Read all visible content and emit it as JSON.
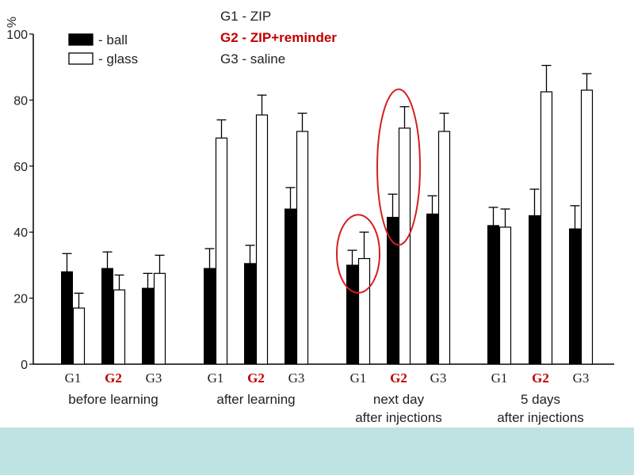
{
  "chart_data": {
    "type": "bar",
    "ylabel": "%",
    "ylim": [
      0,
      100
    ],
    "yticks": [
      "0",
      "20",
      "40",
      "60",
      "80",
      "100"
    ],
    "legend": {
      "placement": "top-left",
      "entries": [
        {
          "label": "- ball",
          "fill": "black"
        },
        {
          "label": "- glass",
          "fill": "white"
        }
      ]
    },
    "group_key": [
      {
        "text": "G1 - ZIP",
        "color": "#222222",
        "bold": false
      },
      {
        "text": "G2 - ZIP+reminder",
        "color": "#c00000",
        "bold": true
      },
      {
        "text": "G3 - saline",
        "color": "#222222",
        "bold": false
      }
    ],
    "series": [
      {
        "name": "ball",
        "fill": "#000000"
      },
      {
        "name": "glass",
        "fill": "#ffffff"
      }
    ],
    "sessions": [
      {
        "label": [
          "before learning"
        ],
        "groups": [
          {
            "label": "G1",
            "highlight": false,
            "ball": 28,
            "ball_err": 5.5,
            "glass": 17,
            "glass_err": 4.5
          },
          {
            "label": "G2",
            "highlight": true,
            "ball": 29,
            "ball_err": 5,
            "glass": 22.5,
            "glass_err": 4.5
          },
          {
            "label": "G3",
            "highlight": false,
            "ball": 23,
            "ball_err": 4.5,
            "glass": 27.5,
            "glass_err": 5.5
          }
        ]
      },
      {
        "label": [
          "after learning"
        ],
        "groups": [
          {
            "label": "G1",
            "highlight": false,
            "ball": 29,
            "ball_err": 6,
            "glass": 68.5,
            "glass_err": 5.5
          },
          {
            "label": "G2",
            "highlight": true,
            "ball": 30.5,
            "ball_err": 5.5,
            "glass": 75.5,
            "glass_err": 6
          },
          {
            "label": "G3",
            "highlight": false,
            "ball": 47,
            "ball_err": 6.5,
            "glass": 70.5,
            "glass_err": 5.5
          }
        ]
      },
      {
        "label": [
          "next day",
          "after injections"
        ],
        "groups": [
          {
            "label": "G1",
            "highlight": false,
            "ball": 30,
            "ball_err": 4.5,
            "glass": 32,
            "glass_err": 8
          },
          {
            "label": "G2",
            "highlight": true,
            "ball": 44.5,
            "ball_err": 7,
            "glass": 71.5,
            "glass_err": 6.5
          },
          {
            "label": "G3",
            "highlight": false,
            "ball": 45.5,
            "ball_err": 5.5,
            "glass": 70.5,
            "glass_err": 5.5
          }
        ]
      },
      {
        "label": [
          "5 days",
          "after injections"
        ],
        "groups": [
          {
            "label": "G1",
            "highlight": false,
            "ball": 42,
            "ball_err": 5.5,
            "glass": 41.5,
            "glass_err": 5.5
          },
          {
            "label": "G2",
            "highlight": true,
            "ball": 45,
            "ball_err": 8,
            "glass": 82.5,
            "glass_err": 8
          },
          {
            "label": "G3",
            "highlight": false,
            "ball": 41,
            "ball_err": 7,
            "glass": 83,
            "glass_err": 5
          }
        ]
      }
    ],
    "annotations": [
      {
        "type": "ellipse",
        "color": "#d42020",
        "session": 2,
        "group": 0
      },
      {
        "type": "ellipse",
        "color": "#d42020",
        "session": 2,
        "group": 1
      }
    ],
    "grid": false
  }
}
